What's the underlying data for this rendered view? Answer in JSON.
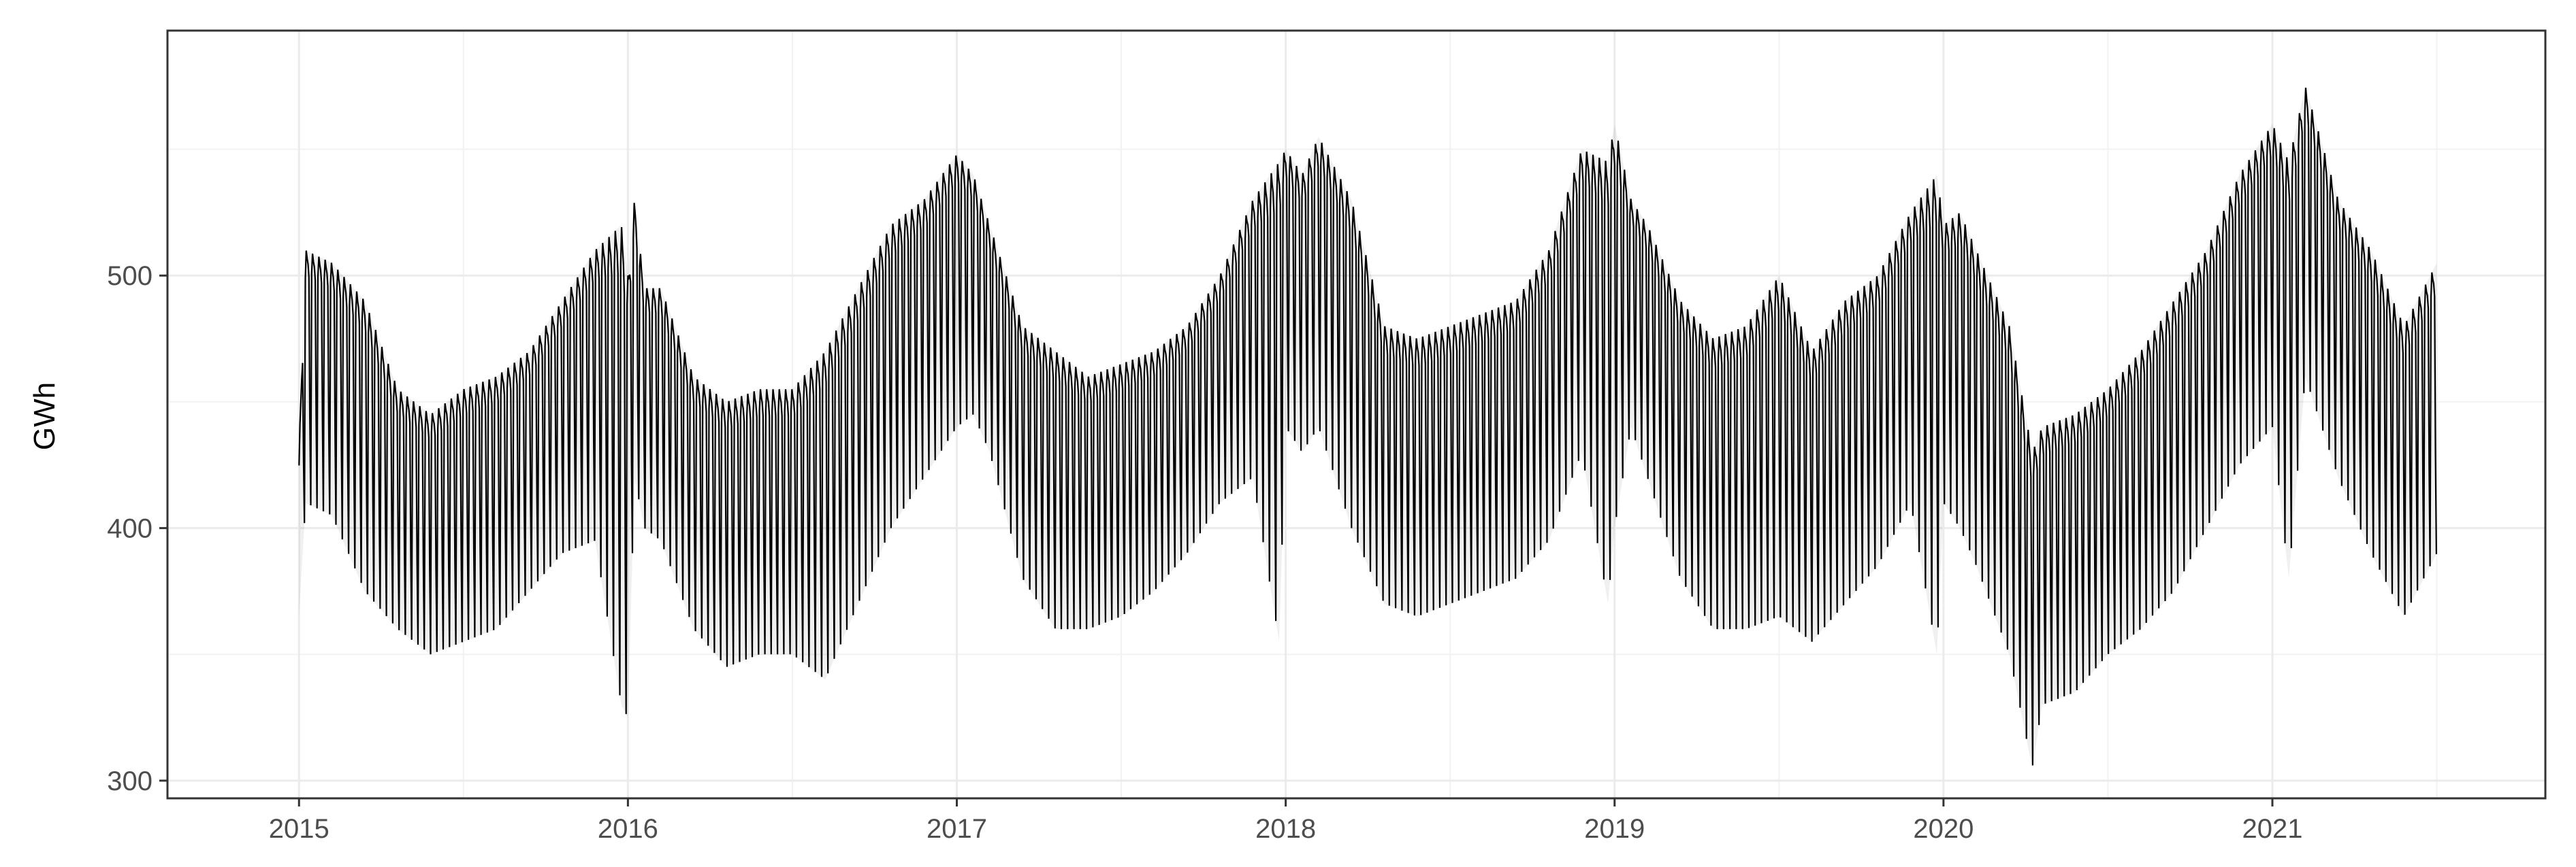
{
  "chart_data": {
    "type": "line",
    "title": "",
    "xlabel": "",
    "ylabel": "GWh",
    "xlim": [
      2014.6,
      2021.83
    ],
    "ylim": [
      293,
      597
    ],
    "grid": true,
    "legend": "none",
    "x_ticks": [
      "2015",
      "2016",
      "2017",
      "2018",
      "2019",
      "2020",
      "2021"
    ],
    "y_ticks": [
      300,
      400,
      500
    ],
    "series": [
      {
        "color": "#000000",
        "x": [
          2015.0,
          2015.02,
          2015.1,
          2015.2,
          2015.3,
          2015.4,
          2015.5,
          2015.6,
          2015.7,
          2015.8,
          2015.9,
          2015.98,
          2016.0,
          2016.02,
          2016.05,
          2016.1,
          2016.2,
          2016.3,
          2016.4,
          2016.5,
          2016.6,
          2016.7,
          2016.8,
          2016.9,
          2017.0,
          2017.05,
          2017.1,
          2017.2,
          2017.3,
          2017.4,
          2017.5,
          2017.6,
          2017.7,
          2017.8,
          2017.9,
          2017.98,
          2018.0,
          2018.05,
          2018.1,
          2018.2,
          2018.3,
          2018.4,
          2018.5,
          2018.6,
          2018.7,
          2018.8,
          2018.9,
          2018.98,
          2019.0,
          2019.05,
          2019.1,
          2019.2,
          2019.3,
          2019.4,
          2019.5,
          2019.6,
          2019.7,
          2019.8,
          2019.9,
          2019.98,
          2020.0,
          2020.05,
          2020.1,
          2020.2,
          2020.27,
          2020.3,
          2020.4,
          2020.5,
          2020.6,
          2020.7,
          2020.8,
          2020.9,
          2021.0,
          2021.05,
          2021.1,
          2021.2,
          2021.3,
          2021.4,
          2021.5
        ],
        "high": [
          430,
          510,
          505,
          490,
          455,
          445,
          455,
          460,
          470,
          490,
          510,
          520,
          500,
          530,
          495,
          495,
          460,
          450,
          455,
          455,
          470,
          495,
          520,
          530,
          548,
          540,
          520,
          480,
          470,
          460,
          465,
          470,
          480,
          500,
          530,
          545,
          550,
          540,
          555,
          530,
          480,
          475,
          480,
          485,
          490,
          510,
          550,
          545,
          560,
          530,
          520,
          490,
          475,
          480,
          500,
          470,
          490,
          500,
          525,
          540,
          520,
          525,
          510,
          480,
          430,
          440,
          445,
          455,
          470,
          490,
          510,
          540,
          560,
          545,
          575,
          530,
          510,
          480,
          505
        ],
        "low": [
          365,
          410,
          405,
          375,
          360,
          350,
          355,
          360,
          375,
          390,
          395,
          330,
          325,
          420,
          400,
          395,
          360,
          345,
          350,
          350,
          340,
          370,
          400,
          420,
          440,
          445,
          430,
          380,
          360,
          360,
          365,
          375,
          390,
          410,
          420,
          355,
          440,
          430,
          440,
          400,
          370,
          365,
          370,
          375,
          380,
          395,
          430,
          370,
          400,
          440,
          420,
          380,
          360,
          360,
          365,
          355,
          370,
          385,
          410,
          350,
          410,
          400,
          385,
          350,
          305,
          330,
          335,
          350,
          360,
          375,
          400,
          425,
          440,
          380,
          460,
          420,
          390,
          365,
          390
        ]
      }
    ]
  }
}
